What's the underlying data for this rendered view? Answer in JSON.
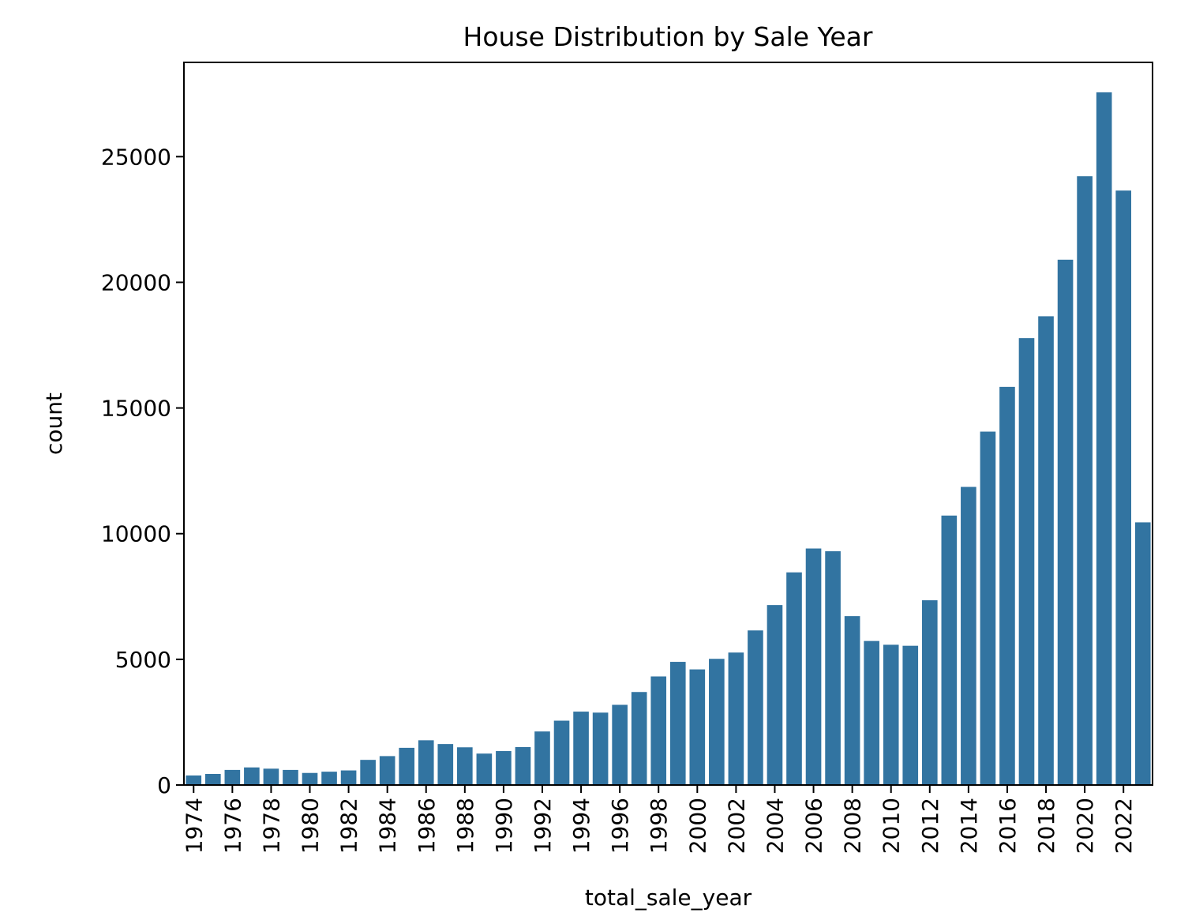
{
  "chart_data": {
    "type": "bar",
    "title": "House Distribution by Sale Year",
    "xlabel": "total_sale_year",
    "ylabel": "count",
    "ylim": [
      0,
      28750
    ],
    "yticks": [
      0,
      5000,
      10000,
      15000,
      20000,
      25000
    ],
    "bar_color": "#3274a1",
    "grid": false,
    "legend": "none",
    "categories": [
      "1974",
      "1975",
      "1976",
      "1977",
      "1978",
      "1979",
      "1980",
      "1981",
      "1982",
      "1983",
      "1984",
      "1985",
      "1986",
      "1987",
      "1988",
      "1989",
      "1990",
      "1991",
      "1992",
      "1993",
      "1994",
      "1995",
      "1996",
      "1997",
      "1998",
      "1999",
      "2000",
      "2001",
      "2002",
      "2003",
      "2004",
      "2005",
      "2006",
      "2007",
      "2008",
      "2009",
      "2010",
      "2011",
      "2012",
      "2013",
      "2014",
      "2015",
      "2016",
      "2017",
      "2018",
      "2019",
      "2020",
      "2021",
      "2022",
      "2023"
    ],
    "tick_labels": [
      "1974",
      "1976",
      "1978",
      "1980",
      "1982",
      "1984",
      "1986",
      "1988",
      "1990",
      "1992",
      "1994",
      "1996",
      "1998",
      "2000",
      "2002",
      "2004",
      "2006",
      "2008",
      "2010",
      "2012",
      "2014",
      "2016",
      "2018",
      "2020",
      "2022"
    ],
    "values": [
      380,
      440,
      600,
      700,
      650,
      600,
      480,
      530,
      580,
      1000,
      1150,
      1480,
      1780,
      1630,
      1500,
      1250,
      1350,
      1510,
      2130,
      2560,
      2920,
      2880,
      3190,
      3700,
      4320,
      4900,
      4600,
      5020,
      5270,
      6150,
      7160,
      8460,
      9410,
      9300,
      6720,
      5730,
      5580,
      5540,
      7350,
      10720,
      11860,
      14060,
      15840,
      17780,
      18650,
      20900,
      24220,
      27560,
      23650,
      10450
    ]
  }
}
